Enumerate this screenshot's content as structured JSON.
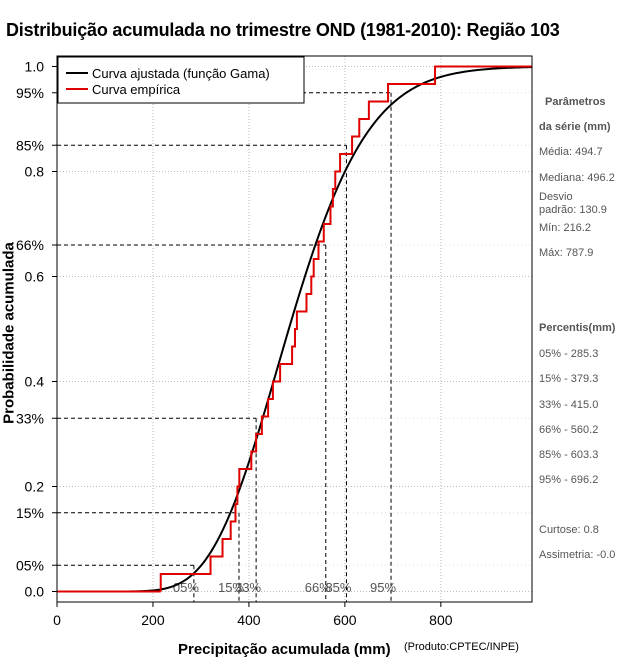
{
  "chart_data": {
    "type": "line",
    "title": "Distribuição acumulada no trimestre OND (1981-2010): Região 103",
    "xlabel": "Precipitação acumulada (mm)",
    "ylabel": "Probabilidade acumulada",
    "credit": "(Produto:CPTEC/INPE)",
    "xlim": [
      0,
      990
    ],
    "ylim": [
      -0.02,
      1.02
    ],
    "x_ticks": [
      0,
      200,
      400,
      600,
      800
    ],
    "x_tick_labels": [
      "0",
      "200",
      "400",
      "600",
      "800"
    ],
    "y_ticks": [
      0.0,
      0.2,
      0.4,
      0.6,
      0.8,
      1.0
    ],
    "y_tick_labels": [
      "0.0",
      "0.2",
      "0.4",
      "0.6",
      "0.8",
      "1.0"
    ],
    "percentile_ticks": [
      0.05,
      0.15,
      0.33,
      0.66,
      0.85,
      0.95
    ],
    "percentile_tick_labels": [
      "05%",
      "15%",
      "33%",
      "66%",
      "85%",
      "95%"
    ],
    "grid": true,
    "legend_position": "top-left",
    "series": [
      {
        "name": "Curva ajustada (função Gama)",
        "color": "#000000",
        "kind": "gamma_cdf",
        "mean": 494.7,
        "sd": 130.9
      },
      {
        "name": "Curva empírica",
        "color": "#e00000",
        "kind": "step",
        "x": [
          216.2,
          320,
          345,
          362,
          372,
          376,
          380,
          405,
          415,
          427,
          440,
          450,
          465,
          490,
          496,
          500,
          520,
          530,
          535,
          545,
          556,
          570,
          575,
          580,
          590,
          615,
          630,
          650,
          690,
          720,
          750,
          787.9
        ],
        "y": [
          0.0333,
          0.0667,
          0.1,
          0.1333,
          0.1667,
          0.2,
          0.2333,
          0.2667,
          0.3,
          0.3333,
          0.3667,
          0.4,
          0.4333,
          0.4667,
          0.5,
          0.5333,
          0.5667,
          0.6,
          0.6333,
          0.6667,
          0.7,
          0.7333,
          0.7667,
          0.8,
          0.8333,
          0.8667,
          0.9,
          0.9333,
          0.9667,
          0.9667,
          0.9667,
          1.0
        ]
      }
    ],
    "percentile_lines": [
      {
        "label": "05%",
        "p": 0.05,
        "x": 285.3
      },
      {
        "label": "15%",
        "p": 0.15,
        "x": 379.3
      },
      {
        "label": "33%",
        "p": 0.33,
        "x": 415.0
      },
      {
        "label": "66%",
        "p": 0.66,
        "x": 560.2
      },
      {
        "label": "85%",
        "p": 0.85,
        "x": 603.3
      },
      {
        "label": "95%",
        "p": 0.95,
        "x": 696.2
      }
    ]
  },
  "sidebar": {
    "params_title_line1": "Parâmetros",
    "params_title_line2": "da série (mm)",
    "media": "Média: 494.7",
    "mediana": "Mediana: 496.2",
    "desvio_line1": "Desvio",
    "desvio_line2": "padrão: 130.9",
    "min": "Mín: 216.2",
    "max": "Máx: 787.9",
    "percentis_title": "Percentis(mm)",
    "p05": "05% - 285.3",
    "p15": "15% - 379.3",
    "p33": "33% - 415.0",
    "p66": "66% - 560.2",
    "p85": "85% - 603.3",
    "p95": "95% - 696.2",
    "curtose": "Curtose: 0.8",
    "assimetria": "Assimetria: -0.0"
  }
}
